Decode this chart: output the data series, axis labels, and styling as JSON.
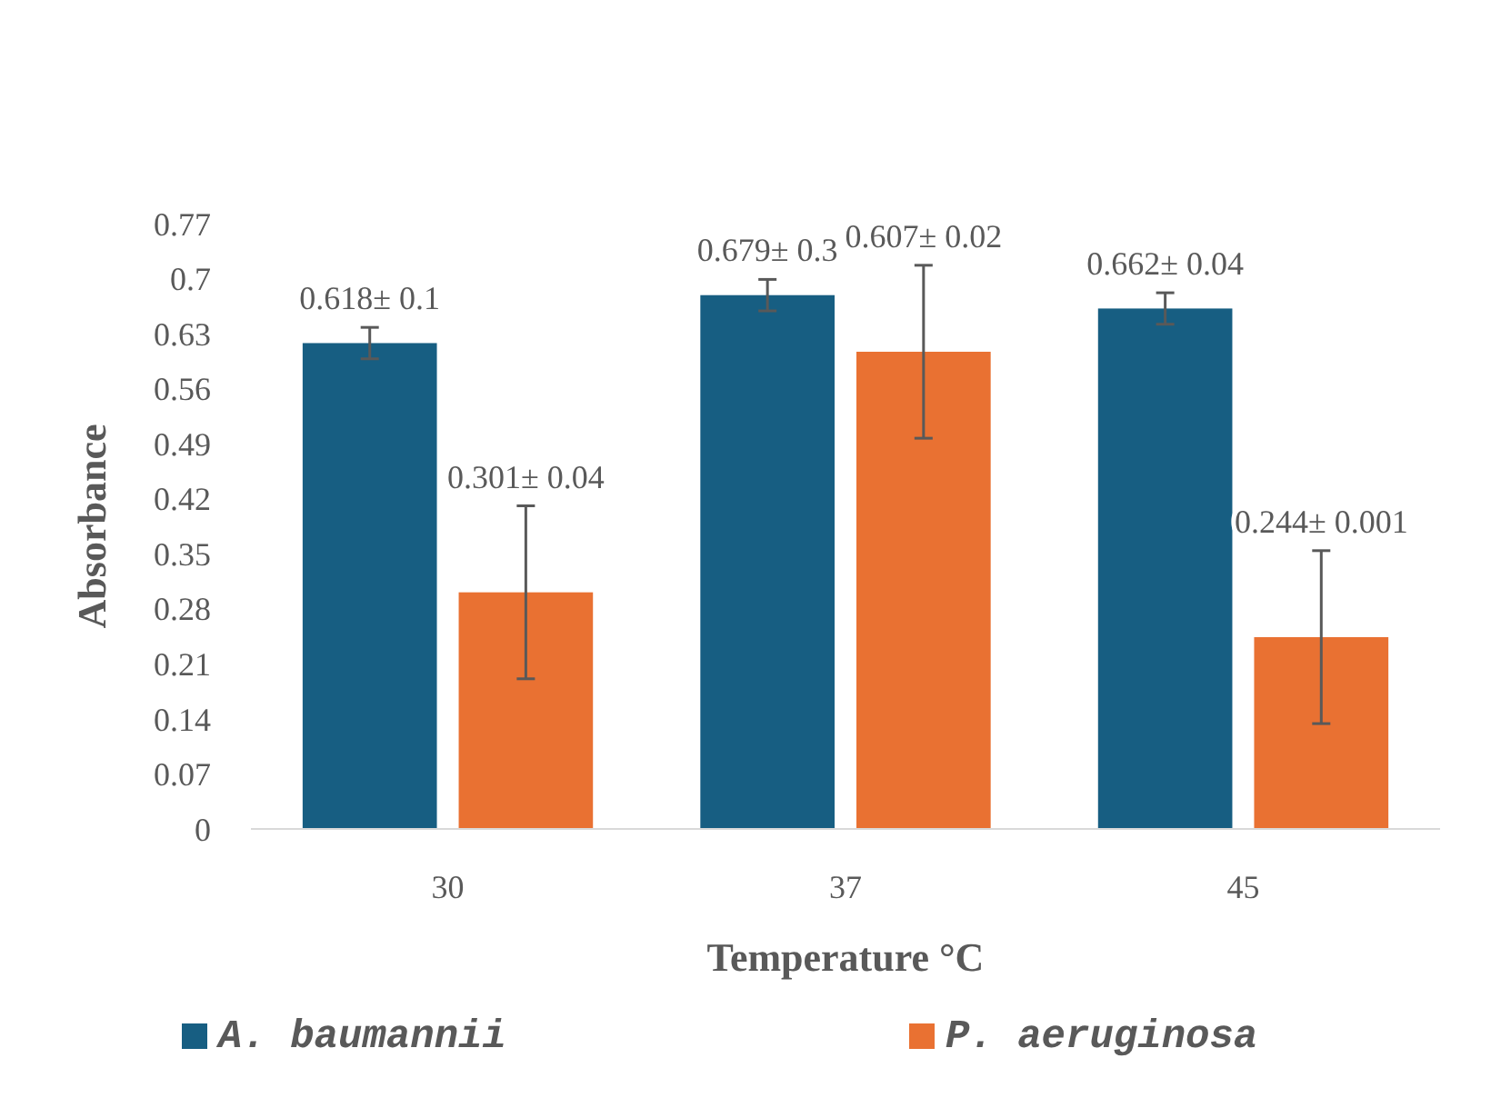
{
  "chart_data": {
    "type": "bar",
    "xlabel": "Temperature °C",
    "ylabel": "Absorbance",
    "categories": [
      "30",
      "37",
      "45"
    ],
    "series": [
      {
        "name": "A. baumannii",
        "color": "#175e82",
        "values": [
          0.618,
          0.679,
          0.662
        ],
        "errors": [
          0.02,
          0.02,
          0.02
        ],
        "value_labels": [
          "0.618± 0.1",
          "0.679± 0.3",
          "0.662± 0.04"
        ]
      },
      {
        "name": "P. aeruginosa",
        "color": "#e97132",
        "values": [
          0.301,
          0.607,
          0.244
        ],
        "errors": [
          0.11,
          0.11,
          0.11
        ],
        "value_labels": [
          "0.301± 0.04",
          "0.607± 0.02",
          "0.244± 0.001"
        ]
      }
    ],
    "ylim": [
      0,
      0.77
    ],
    "yticks": [
      0,
      0.07,
      0.14,
      0.21,
      0.28,
      0.35,
      0.42,
      0.49,
      0.56,
      0.63,
      0.7,
      0.77
    ],
    "grid": false,
    "legend": "bottom"
  }
}
